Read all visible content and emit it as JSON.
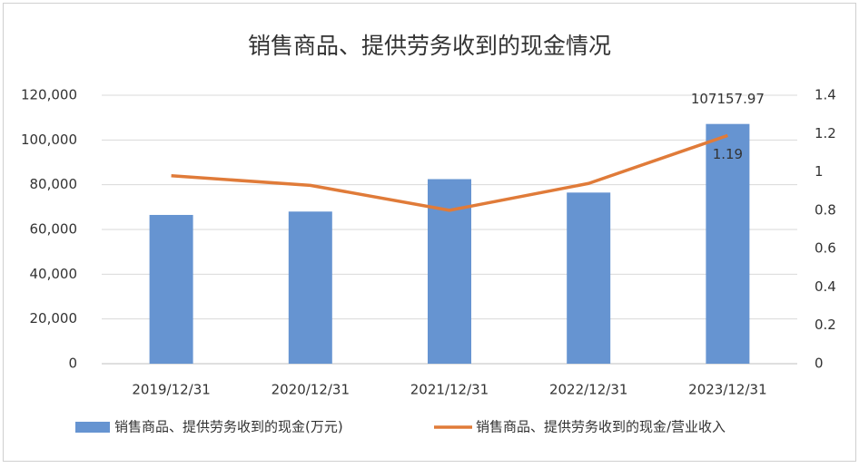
{
  "chart_data": {
    "type": "bar",
    "title": "销售商品、提供劳务收到的现金情况",
    "categories": [
      "2019/12/31",
      "2020/12/31",
      "2021/12/31",
      "2022/12/31",
      "2023/12/31"
    ],
    "series": [
      {
        "name": "销售商品、提供劳务收到的现金(万元)",
        "type": "bar",
        "color": "#6694d1",
        "values": [
          66500,
          68000,
          82500,
          76500,
          107157.97
        ],
        "value_labels": [
          null,
          null,
          null,
          null,
          "107157.97"
        ]
      },
      {
        "name": "销售商品、提供劳务收到的现金/营业收入",
        "type": "line",
        "axis": "y2",
        "color": "#e07b39",
        "values": [
          0.98,
          0.93,
          0.8,
          0.94,
          1.19
        ],
        "value_labels": [
          null,
          null,
          null,
          null,
          "1.19"
        ]
      }
    ],
    "ylim": [
      0,
      120000
    ],
    "yticks": [
      0,
      {
        "value": 20000,
        "label": "20,000"
      },
      {
        "value": 40000,
        "label": "40,000"
      },
      {
        "value": 60000,
        "label": "60,000"
      },
      {
        "value": 80000,
        "label": "80,000"
      },
      {
        "value": 100000,
        "label": "100,000"
      },
      {
        "value": 120000,
        "label": "120,000"
      }
    ],
    "y2lim": [
      0,
      1.4
    ],
    "y2ticks": [
      0,
      0.2,
      0.4,
      0.6,
      0.8,
      1,
      1.2,
      1.4
    ],
    "grid": true,
    "legend": "bottom"
  }
}
